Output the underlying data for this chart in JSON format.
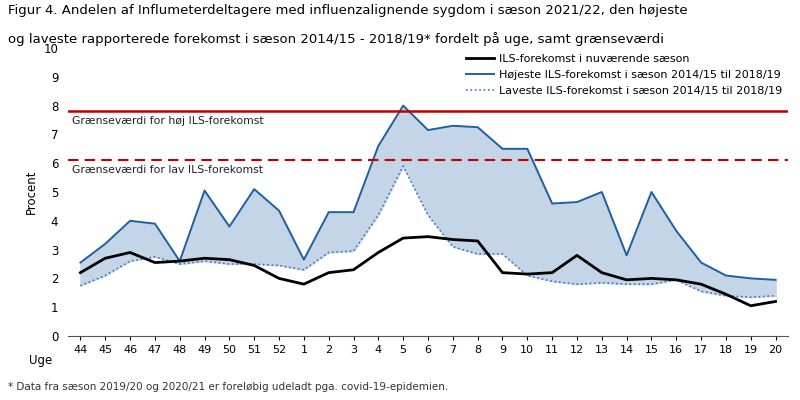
{
  "title_line1": "Figur 4. Andelen af Influmeterdeltagere med influenzalignende sygdom i sæson 2021/22, den højeste",
  "title_line2": "og laveste rapporterede forekomst i sæson 2014/15 - 2018/19* fordelt på uge, samt grænseværdi",
  "xlabel": "Uge",
  "ylabel": "Procent",
  "footnote": "* Data fra sæson 2019/20 og 2020/21 er foreløbig udeladt pga. covid-19-epidemien.",
  "weeks": [
    44,
    45,
    46,
    47,
    48,
    49,
    50,
    51,
    52,
    1,
    2,
    3,
    4,
    5,
    6,
    7,
    8,
    9,
    10,
    11,
    12,
    13,
    14,
    15,
    16,
    17,
    18,
    19,
    20
  ],
  "current_season": [
    2.2,
    2.7,
    2.9,
    2.55,
    2.6,
    2.7,
    2.65,
    2.45,
    2.0,
    1.8,
    2.2,
    2.3,
    2.9,
    3.4,
    3.45,
    3.35,
    3.3,
    2.2,
    2.15,
    2.2,
    2.8,
    2.2,
    1.95,
    2.0,
    1.95,
    1.8,
    1.45,
    1.05,
    1.2
  ],
  "highest": [
    2.55,
    3.2,
    4.0,
    3.9,
    2.6,
    5.05,
    3.8,
    5.1,
    4.35,
    2.65,
    4.3,
    4.3,
    6.6,
    8.0,
    7.15,
    7.3,
    7.25,
    6.5,
    6.5,
    4.6,
    4.65,
    5.0,
    2.8,
    5.0,
    3.65,
    2.55,
    2.1,
    2.0,
    1.95
  ],
  "lowest": [
    1.75,
    2.1,
    2.6,
    2.75,
    2.5,
    2.6,
    2.5,
    2.5,
    2.45,
    2.3,
    2.9,
    2.95,
    4.2,
    5.9,
    4.2,
    3.1,
    2.85,
    2.85,
    2.1,
    1.9,
    1.8,
    1.85,
    1.8,
    1.8,
    1.95,
    1.55,
    1.4,
    1.35,
    1.4
  ],
  "threshold_high": 7.8,
  "threshold_low": 6.1,
  "threshold_high_label": "Grænseværdi for høj ILS-forekomst",
  "threshold_low_label": "Grænseværdi for lav ILS-forekomst",
  "legend_current": "ILS-forekomst i nuværende sæson",
  "legend_highest": "Højeste ILS-forekomst i sæson 2014/15 til 2018/19",
  "legend_lowest": "Laveste ILS-forekomst i sæson 2014/15 til 2018/19",
  "ylim": [
    0,
    10
  ],
  "yticks": [
    0,
    1,
    2,
    3,
    4,
    5,
    6,
    7,
    8,
    9,
    10
  ],
  "color_current": "#000000",
  "color_highest": "#2060a0",
  "color_lowest": "#4472b8",
  "color_fill": "#c5d5e8",
  "color_threshold_high": "#c00000",
  "color_threshold_low": "#c00000",
  "title_fontsize": 9.5,
  "axis_fontsize": 8.5,
  "legend_fontsize": 8.0
}
